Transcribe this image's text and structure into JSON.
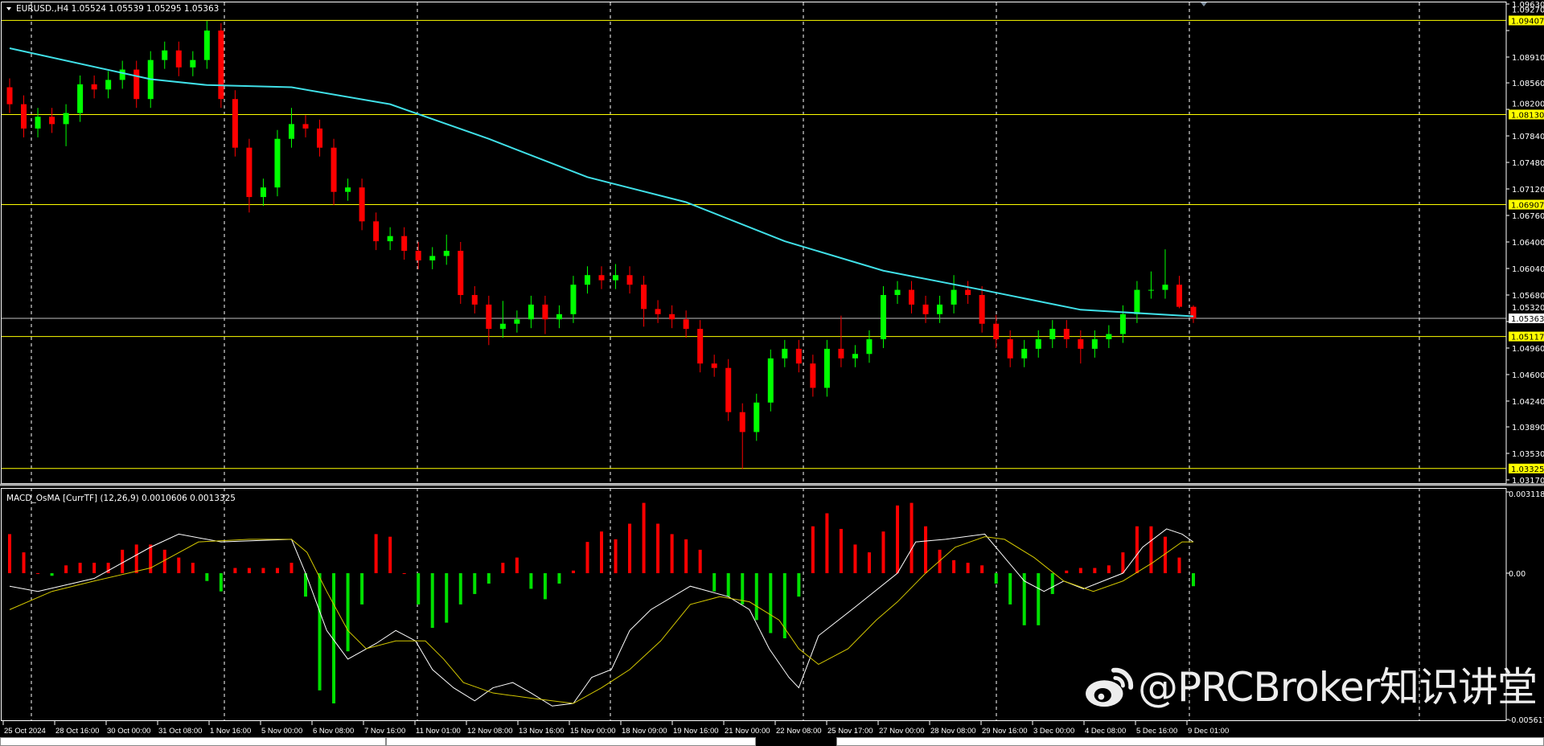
{
  "header": {
    "symbol_info": "EURUSD.,H4  1.05524 1.05539 1.05295 1.05363",
    "collapse_icon": "triangle-down-icon"
  },
  "indicator": {
    "label": "MACD_OsMA [CurrTF] (12,26,9) 0.0010606 0.0013325"
  },
  "watermark": {
    "text": "@PRCBroker知识讲堂",
    "logo": "weibo-logo-icon"
  },
  "colors": {
    "background": "#000000",
    "bull_candle": "#00ff00",
    "bear_candle": "#ff0000",
    "moving_average": "#40e0e8",
    "level_line": "#ffff00",
    "bid_line": "#c0c0c0",
    "macd_line": "#ffffff",
    "signal_line": "#d4c800",
    "hist_positive": "#ff0000",
    "hist_negative": "#00e000"
  },
  "chart_data": [
    {
      "type": "candlestick",
      "title": "EURUSD.,H4",
      "ylim": [
        1.0317,
        1.0963
      ],
      "price_ticks": [
        "1.09630",
        "1.09270",
        "1.08910",
        "1.08560",
        "1.08200",
        "1.07840",
        "1.07480",
        "1.07120",
        "1.06760",
        "1.06400",
        "1.06040",
        "1.05680",
        "1.05320",
        "1.04960",
        "1.04600",
        "1.04240",
        "1.03890",
        "1.03530",
        "1.03170"
      ],
      "level_lines": [
        "1.09407",
        "1.08130",
        "1.06907",
        "1.05117",
        "1.03325"
      ],
      "bid_price": "1.05363",
      "time_labels": [
        "25 Oct 2024",
        "28 Oct 16:00",
        "30 Oct 00:00",
        "31 Oct 08:00",
        "1 Nov 16:00",
        "5 Nov 00:00",
        "6 Nov 08:00",
        "7 Nov 16:00",
        "11 Nov 01:00",
        "12 Nov 08:00",
        "13 Nov 16:00",
        "15 Nov 00:00",
        "18 Nov 09:00",
        "19 Nov 16:00",
        "21 Nov 00:00",
        "22 Nov 08:00",
        "25 Nov 17:00",
        "27 Nov 00:00",
        "28 Nov 08:00",
        "29 Nov 16:00",
        "3 Dec 00:00",
        "4 Dec 08:00",
        "5 Dec 16:00",
        "9 Dec 01:00"
      ],
      "grid": "vertical dashed",
      "ohlc": [
        [
          1.085,
          1.0862,
          1.0815,
          1.0827
        ],
        [
          1.0827,
          1.0839,
          1.0782,
          1.0794
        ],
        [
          1.0794,
          1.0822,
          1.0782,
          1.081
        ],
        [
          1.081,
          1.0822,
          1.0788,
          1.08
        ],
        [
          1.08,
          1.0827,
          1.077,
          1.0815
        ],
        [
          1.0815,
          1.0866,
          1.0803,
          1.0854
        ],
        [
          1.0854,
          1.0866,
          1.0835,
          1.0847
        ],
        [
          1.0847,
          1.0872,
          1.0835,
          1.086
        ],
        [
          1.086,
          1.0886,
          1.0848,
          1.0874
        ],
        [
          1.0874,
          1.0886,
          1.0822,
          1.0834
        ],
        [
          1.0834,
          1.0899,
          1.0822,
          1.0887
        ],
        [
          1.0887,
          1.0912,
          1.0875,
          1.09
        ],
        [
          1.09,
          1.0912,
          1.0865,
          1.0877
        ],
        [
          1.0877,
          1.0899,
          1.0865,
          1.0887
        ],
        [
          1.0887,
          1.094,
          1.0875,
          1.0927
        ],
        [
          1.0927,
          1.0937,
          1.0822,
          1.0834
        ],
        [
          1.0834,
          1.0846,
          1.0756,
          1.0768
        ],
        [
          1.0768,
          1.078,
          1.068,
          1.0701
        ],
        [
          1.0701,
          1.0726,
          1.0689,
          1.0714
        ],
        [
          1.0714,
          1.0792,
          1.0702,
          1.078
        ],
        [
          1.078,
          1.0822,
          1.0768,
          1.08
        ],
        [
          1.08,
          1.0812,
          1.0782,
          1.0794
        ],
        [
          1.0794,
          1.0806,
          1.0756,
          1.0768
        ],
        [
          1.0768,
          1.078,
          1.069,
          1.0708
        ],
        [
          1.0708,
          1.0726,
          1.0696,
          1.0714
        ],
        [
          1.0714,
          1.0726,
          1.0656,
          1.0668
        ],
        [
          1.0668,
          1.068,
          1.0629,
          1.0641
        ],
        [
          1.0641,
          1.066,
          1.0629,
          1.0648
        ],
        [
          1.0648,
          1.066,
          1.0616,
          1.0628
        ],
        [
          1.0628,
          1.064,
          1.0603,
          1.0615
        ],
        [
          1.0615,
          1.0633,
          1.0603,
          1.0621
        ],
        [
          1.0621,
          1.065,
          1.0609,
          1.0628
        ],
        [
          1.0628,
          1.064,
          1.0556,
          1.0568
        ],
        [
          1.0568,
          1.058,
          1.0543,
          1.0555
        ],
        [
          1.0555,
          1.0567,
          1.05,
          1.0522
        ],
        [
          1.0522,
          1.056,
          1.051,
          1.0529
        ],
        [
          1.0529,
          1.0547,
          1.0517,
          1.0535
        ],
        [
          1.0535,
          1.0567,
          1.0523,
          1.0555
        ],
        [
          1.0555,
          1.0567,
          1.0515,
          1.0535
        ],
        [
          1.0535,
          1.0554,
          1.0523,
          1.0542
        ],
        [
          1.0542,
          1.0594,
          1.053,
          1.0582
        ],
        [
          1.0582,
          1.0607,
          1.057,
          1.0595
        ],
        [
          1.0595,
          1.0607,
          1.0576,
          1.0588
        ],
        [
          1.0588,
          1.061,
          1.0576,
          1.0595
        ],
        [
          1.0595,
          1.0607,
          1.057,
          1.0582
        ],
        [
          1.0582,
          1.0594,
          1.0525,
          1.0549
        ],
        [
          1.0549,
          1.0561,
          1.053,
          1.0542
        ],
        [
          1.0542,
          1.0554,
          1.0523,
          1.0535
        ],
        [
          1.0535,
          1.0547,
          1.051,
          1.0522
        ],
        [
          1.0522,
          1.0534,
          1.0463,
          1.0475
        ],
        [
          1.0475,
          1.0487,
          1.0457,
          1.0469
        ],
        [
          1.0469,
          1.0481,
          1.0397,
          1.0409
        ],
        [
          1.0409,
          1.0421,
          1.0332,
          1.0382
        ],
        [
          1.0382,
          1.0434,
          1.037,
          1.0422
        ],
        [
          1.0422,
          1.0494,
          1.041,
          1.0482
        ],
        [
          1.0482,
          1.0507,
          1.047,
          1.0495
        ],
        [
          1.0495,
          1.0507,
          1.0463,
          1.0475
        ],
        [
          1.0475,
          1.0487,
          1.043,
          1.0442
        ],
        [
          1.0442,
          1.0507,
          1.043,
          1.0495
        ],
        [
          1.0495,
          1.054,
          1.047,
          1.0482
        ],
        [
          1.0482,
          1.05,
          1.047,
          1.0488
        ],
        [
          1.0488,
          1.052,
          1.0476,
          1.0508
        ],
        [
          1.0508,
          1.058,
          1.0496,
          1.0568
        ],
        [
          1.0568,
          1.0587,
          1.0556,
          1.0575
        ],
        [
          1.0575,
          1.0587,
          1.0543,
          1.0555
        ],
        [
          1.0555,
          1.0567,
          1.053,
          1.0542
        ],
        [
          1.0542,
          1.0567,
          1.053,
          1.0555
        ],
        [
          1.0555,
          1.0595,
          1.0543,
          1.0575
        ],
        [
          1.0575,
          1.0587,
          1.0556,
          1.0568
        ],
        [
          1.0568,
          1.058,
          1.0517,
          1.0529
        ],
        [
          1.0529,
          1.0541,
          1.0496,
          1.0508
        ],
        [
          1.0508,
          1.052,
          1.047,
          1.0482
        ],
        [
          1.0482,
          1.0507,
          1.047,
          1.0495
        ],
        [
          1.0495,
          1.052,
          1.0483,
          1.0508
        ],
        [
          1.0508,
          1.0534,
          1.0496,
          1.0522
        ],
        [
          1.0522,
          1.0534,
          1.0496,
          1.0508
        ],
        [
          1.0508,
          1.052,
          1.0475,
          1.0495
        ],
        [
          1.0495,
          1.052,
          1.0483,
          1.0508
        ],
        [
          1.0508,
          1.0527,
          1.0496,
          1.0515
        ],
        [
          1.0515,
          1.0554,
          1.0503,
          1.0542
        ],
        [
          1.0542,
          1.0587,
          1.053,
          1.0575
        ],
        [
          1.0575,
          1.06,
          1.0563,
          1.0575
        ],
        [
          1.0575,
          1.063,
          1.0563,
          1.0582
        ],
        [
          1.0582,
          1.0594,
          1.055,
          1.0552
        ],
        [
          1.0552,
          1.0554,
          1.053,
          1.0536
        ]
      ],
      "moving_average": [
        [
          0,
          1.0903
        ],
        [
          10,
          1.0861
        ],
        [
          14,
          1.0853
        ],
        [
          20,
          1.085
        ],
        [
          27,
          1.0827
        ],
        [
          34,
          1.078
        ],
        [
          41,
          1.0728
        ],
        [
          48,
          1.0694
        ],
        [
          55,
          1.0641
        ],
        [
          62,
          1.0601
        ],
        [
          69,
          1.0575
        ],
        [
          76,
          1.0548
        ],
        [
          84,
          1.0539
        ]
      ]
    },
    {
      "type": "bar+line",
      "title": "MACD_OsMA [CurrTF] (12,26,9)",
      "ylim": [
        -0.005617,
        0.0031184
      ],
      "ticks": [
        "0.0031184",
        "0.00",
        "-0.005617"
      ],
      "histogram": [
        0.0015,
        0.0008,
        0.0,
        -0.0001,
        0.0003,
        0.0004,
        0.0004,
        0.0004,
        0.0009,
        0.0011,
        0.0011,
        0.0009,
        0.0006,
        0.0004,
        -0.0003,
        -0.0007,
        0.0002,
        0.0002,
        0.0002,
        0.0002,
        0.0004,
        -0.0009,
        -0.0045,
        -0.005,
        -0.003,
        -0.0012,
        0.0015,
        0.0014,
        0.0,
        -0.0012,
        -0.0021,
        -0.0019,
        -0.0012,
        -0.0008,
        -0.0004,
        0.0004,
        0.0006,
        -0.0006,
        -0.001,
        -0.0004,
        0.0001,
        0.0012,
        0.0016,
        0.0013,
        0.0019,
        0.0027,
        0.0019,
        0.0015,
        0.0013,
        0.0009,
        -0.0007,
        -0.0009,
        -0.0012,
        -0.0018,
        -0.0023,
        -0.0025,
        -0.0009,
        0.0018,
        0.0023,
        0.0017,
        0.0011,
        0.0008,
        0.0016,
        0.0026,
        0.0027,
        0.0018,
        0.0009,
        0.0005,
        0.0004,
        0.0003,
        -0.0004,
        -0.0012,
        -0.002,
        -0.002,
        -0.0008,
        0.0001,
        0.0002,
        0.0002,
        0.0003,
        0.0008,
        0.0018,
        0.0018,
        0.0014,
        0.0006,
        -0.0005
      ],
      "macd_line": [
        [
          0,
          -0.0005
        ],
        [
          2,
          -0.0007
        ],
        [
          6,
          -0.0002
        ],
        [
          10,
          0.001
        ],
        [
          12,
          0.0015
        ],
        [
          15,
          0.0012
        ],
        [
          20,
          0.0013
        ],
        [
          21,
          0.0
        ],
        [
          22.5,
          -0.0022
        ],
        [
          24,
          -0.0033
        ],
        [
          26,
          -0.0027
        ],
        [
          27.4,
          -0.0022
        ],
        [
          28.8,
          -0.0026
        ],
        [
          30,
          -0.0037
        ],
        [
          31.5,
          -0.0044
        ],
        [
          33,
          -0.0049
        ],
        [
          34.3,
          -0.0044
        ],
        [
          35.7,
          -0.0042
        ],
        [
          37,
          -0.0046
        ],
        [
          38.5,
          -0.0051
        ],
        [
          40,
          -0.005
        ],
        [
          41.3,
          -0.004
        ],
        [
          42.7,
          -0.0037
        ],
        [
          44,
          -0.0022
        ],
        [
          45.5,
          -0.0014
        ],
        [
          48.3,
          -0.0005
        ],
        [
          51,
          -0.0009
        ],
        [
          52.5,
          -0.0014
        ],
        [
          53.9,
          -0.0029
        ],
        [
          55.3,
          -0.004
        ],
        [
          56,
          -0.0044
        ],
        [
          57.4,
          -0.0024
        ],
        [
          60,
          -0.0013
        ],
        [
          63,
          0.0
        ],
        [
          64.3,
          0.0012
        ],
        [
          66.4,
          0.0013
        ],
        [
          69.2,
          0.0015
        ],
        [
          70.6,
          0.0006
        ],
        [
          72,
          -0.0003
        ],
        [
          73.4,
          -0.0007
        ],
        [
          74.8,
          -0.0003
        ],
        [
          76.2,
          -0.0006
        ],
        [
          79,
          0.0
        ],
        [
          80.4,
          0.001
        ],
        [
          82.1,
          0.0017
        ],
        [
          83.2,
          0.0015
        ],
        [
          84,
          0.0012
        ]
      ],
      "signal_line": [
        [
          0,
          -0.0014
        ],
        [
          3,
          -0.0007
        ],
        [
          6,
          -0.0003
        ],
        [
          10,
          0.0002
        ],
        [
          13.4,
          0.0012
        ],
        [
          17,
          0.0013
        ],
        [
          20,
          0.0013
        ],
        [
          21.1,
          0.0008
        ],
        [
          22.5,
          -0.0007
        ],
        [
          24,
          -0.0022
        ],
        [
          25.3,
          -0.0029
        ],
        [
          27.4,
          -0.0026
        ],
        [
          29.5,
          -0.0026
        ],
        [
          30.8,
          -0.0033
        ],
        [
          32.2,
          -0.0042
        ],
        [
          34.3,
          -0.0046
        ],
        [
          37,
          -0.0048
        ],
        [
          40,
          -0.005
        ],
        [
          42,
          -0.0044
        ],
        [
          44,
          -0.0037
        ],
        [
          46.2,
          -0.0026
        ],
        [
          48.3,
          -0.0012
        ],
        [
          50.4,
          -0.0009
        ],
        [
          52.5,
          -0.0011
        ],
        [
          54.6,
          -0.0018
        ],
        [
          56,
          -0.0029
        ],
        [
          57.4,
          -0.0035
        ],
        [
          59.5,
          -0.0029
        ],
        [
          61.5,
          -0.0018
        ],
        [
          63,
          -0.0011
        ],
        [
          65,
          0.0
        ],
        [
          67.1,
          0.001
        ],
        [
          69.2,
          0.0014
        ],
        [
          70.6,
          0.0013
        ],
        [
          72.7,
          0.0006
        ],
        [
          74.8,
          -0.0003
        ],
        [
          76.9,
          -0.0007
        ],
        [
          79,
          -0.0003
        ],
        [
          81.1,
          0.0004
        ],
        [
          83.2,
          0.0012
        ],
        [
          84,
          0.0012
        ]
      ]
    }
  ]
}
